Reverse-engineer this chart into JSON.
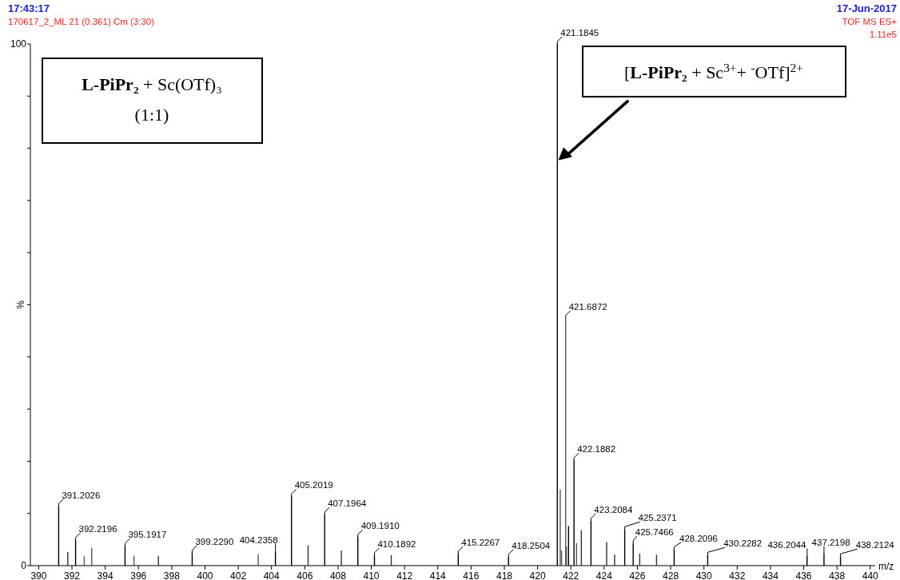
{
  "chart_data": {
    "type": "bar",
    "title": "17:43:17",
    "subtitle": "170617_2_ML 21 (0.361) Cm (3:30)",
    "xlabel": "m/z",
    "ylabel": "%",
    "x": [
      391.2026,
      391.75,
      392.2196,
      392.74,
      393.19,
      395.1917,
      395.73,
      397.2,
      399.229,
      403.2,
      404.2358,
      405.2019,
      406.2,
      407.1964,
      408.2,
      409.191,
      410.1892,
      411.2,
      415.2267,
      418.2504,
      421.1845,
      421.36,
      421.44,
      421.6872,
      421.73,
      421.86,
      422.1882,
      422.34,
      422.63,
      423.2084,
      424.15,
      424.63,
      425.2371,
      425.7466,
      426.14,
      427.15,
      428.2096,
      430.2282,
      436.2044,
      437.2198,
      438.2124
    ],
    "values": [
      11.4,
      2.6,
      4.9,
      1.8,
      3.4,
      3.8,
      1.9,
      1.8,
      2.5,
      2.2,
      2.8,
      13.3,
      3.9,
      9.8,
      2.9,
      5.5,
      2.0,
      2.0,
      2.3,
      1.7,
      100,
      14.6,
      2.9,
      47.5,
      3.7,
      7.6,
      20.2,
      4.3,
      6.8,
      8.6,
      4.5,
      2.1,
      7.0,
      4.3,
      2.3,
      2.1,
      3.1,
      2.1,
      1.9,
      2.3,
      1.8
    ],
    "colors": [
      "#000000",
      "#333333",
      "#000000",
      "#555555",
      "#555555",
      "#000000",
      "#555555",
      "#333333",
      "#000000",
      "#555555",
      "#000000",
      "#000000",
      "#333333",
      "#000000",
      "#333333",
      "#000000",
      "#000000",
      "#333333",
      "#000000",
      "#000000",
      "#000000",
      "#555555",
      "#555555",
      "#555555",
      "#555555",
      "#000000",
      "#000000",
      "#555555",
      "#333333",
      "#000000",
      "#333333",
      "#333333",
      "#000000",
      "#000000",
      "#333333",
      "#333333",
      "#000000",
      "#000000",
      "#000000",
      "#000000",
      "#000000"
    ],
    "xlim": [
      389.5,
      440.3
    ],
    "xticks": [
      390,
      392,
      394,
      396,
      398,
      400,
      402,
      404,
      406,
      408,
      410,
      412,
      414,
      416,
      418,
      420,
      422,
      424,
      426,
      428,
      430,
      432,
      434,
      436,
      438,
      440
    ],
    "ylim": [
      0,
      100
    ],
    "yticks": [
      0,
      {
        "value": 10,
        "label": null
      },
      {
        "value": 20,
        "label": null
      },
      {
        "value": 30,
        "label": null
      },
      {
        "value": 40,
        "label": null
      },
      {
        "value": 50,
        "label": null
      },
      {
        "value": 60,
        "label": null
      },
      {
        "value": 70,
        "label": null
      },
      {
        "value": 80,
        "label": null
      },
      {
        "value": 90,
        "label": null
      },
      100
    ],
    "annotations": [
      "17-Jun-2017",
      "TOF MS ES+",
      "1.11e5",
      "L-PiPr₂ + Sc(OTf)₃",
      "(1:1)",
      "[L-PiPr₂ + Sc$^{3+}$+ $^{-}$OTf]$^{2+}$",
      {
        "text": "391.2026",
        "x": 391.2026,
        "y": 11.4
      },
      {
        "text": "392.2196",
        "x": 392.2196,
        "y": 4.9
      },
      {
        "text": "395.1917",
        "x": 395.1917,
        "y": 3.8
      },
      {
        "text": "399.2290",
        "x": 399.229,
        "y": 2.5
      },
      {
        "text": "404.2358",
        "x": 404.2358,
        "y": 2.8
      },
      {
        "text": "405.2019",
        "x": 405.2019,
        "y": 13.3
      },
      {
        "text": "407.1964",
        "x": 407.1964,
        "y": 9.8
      },
      {
        "text": "409.1910",
        "x": 409.191,
        "y": 5.5
      },
      {
        "text": "410.1892",
        "x": 410.1892,
        "y": 2.0
      },
      {
        "text": "415.2267",
        "x": 415.2267,
        "y": 2.3
      },
      {
        "text": "418.2504",
        "x": 418.2504,
        "y": 1.7
      },
      {
        "text": "421.1845",
        "x": 421.1845,
        "y": 100
      },
      {
        "text": "421.6872",
        "x": 421.6872,
        "y": 47.5
      },
      {
        "text": "422.1882",
        "x": 422.1882,
        "y": 20.2
      },
      {
        "text": "423.2084",
        "x": 423.2084,
        "y": 8.6
      },
      {
        "text": "425.2371",
        "x": 425.2371,
        "y": 7.0
      },
      {
        "text": "425.7466",
        "x": 425.7466,
        "y": 4.3
      },
      {
        "text": "428.2096",
        "x": 428.2096,
        "y": 3.1
      },
      {
        "text": "430.2282",
        "x": 430.2282,
        "y": 2.1
      },
      {
        "text": "436.2044",
        "x": 436.2044,
        "y": 1.9
      },
      {
        "text": "437.2198",
        "x": 437.2198,
        "y": 2.3
      },
      {
        "text": "438.2124",
        "x": 438.2124,
        "y": 1.8
      }
    ]
  }
}
